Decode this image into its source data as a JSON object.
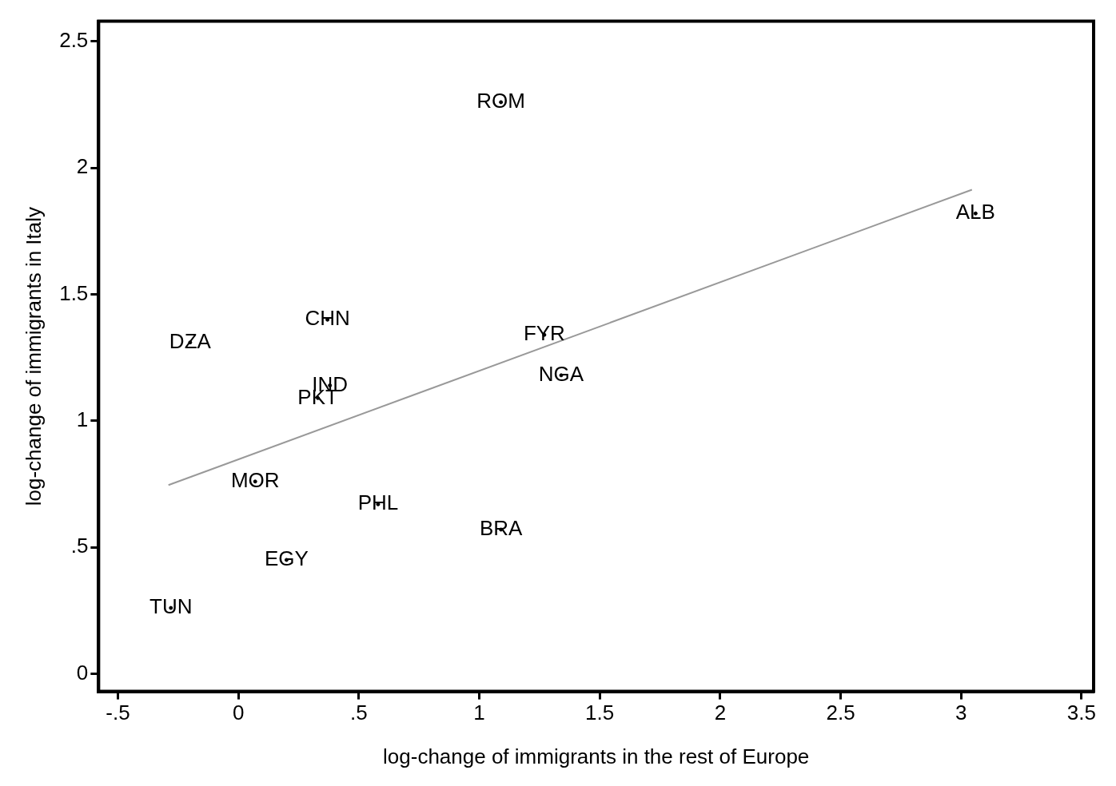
{
  "chart_data": {
    "type": "scatter",
    "xlabel": "log-change of immigrants in the rest of Europe",
    "ylabel": "log-change of immigrants in Italy",
    "xlim": [
      -0.58,
      3.55
    ],
    "ylim": [
      -0.07,
      2.58
    ],
    "xticks": [
      {
        "value": -0.5,
        "label": "-.5"
      },
      0,
      {
        "value": 0.5,
        "label": ".5"
      },
      1,
      {
        "value": 1.5,
        "label": "1.5"
      },
      2,
      {
        "value": 2.5,
        "label": "2.5"
      },
      3,
      {
        "value": 3.5,
        "label": "3.5"
      }
    ],
    "yticks": [
      0,
      {
        "value": 0.5,
        "label": ".5"
      },
      1,
      {
        "value": 1.5,
        "label": "1.5"
      },
      2,
      {
        "value": 2.5,
        "label": "2.5"
      }
    ],
    "grid": false,
    "legend": false,
    "series": [
      {
        "type": "scatter",
        "color": "#000000",
        "x": [
          1.09,
          3.06,
          0.37,
          -0.2,
          1.27,
          1.34,
          0.38,
          0.33,
          0.07,
          0.58,
          1.09,
          0.2,
          -0.28
        ],
        "values": [
          2.26,
          1.82,
          1.4,
          1.31,
          1.34,
          1.18,
          1.14,
          1.09,
          0.76,
          0.67,
          0.57,
          0.45,
          0.26
        ],
        "value_labels": [
          "ROM",
          "ALB",
          "CHN",
          "DZA",
          "FYR",
          "NGA",
          "IND",
          "PKT",
          "MOR",
          "PHL",
          "BRA",
          "EGY",
          "TUN"
        ]
      },
      {
        "type": "line",
        "color": "#999999",
        "x": [
          -0.29,
          3.045
        ],
        "values": [
          0.746,
          1.914
        ]
      }
    ]
  }
}
